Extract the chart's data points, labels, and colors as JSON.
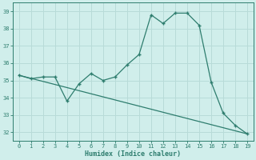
{
  "title": "",
  "xlabel": "Humidex (Indice chaleur)",
  "ylabel": "",
  "line1_x": [
    0,
    1,
    2,
    3,
    4,
    5,
    6,
    7,
    8,
    9,
    10,
    11,
    12,
    13,
    14,
    15,
    16,
    17,
    18,
    19
  ],
  "line1_y": [
    35.3,
    35.1,
    35.2,
    35.2,
    33.8,
    34.8,
    35.4,
    35.0,
    35.2,
    35.9,
    36.5,
    38.8,
    38.3,
    38.9,
    38.9,
    38.2,
    34.9,
    33.1,
    32.4,
    31.9
  ],
  "line2_x": [
    0,
    19
  ],
  "line2_y": [
    35.3,
    31.9
  ],
  "line_color": "#2e7d6e",
  "bg_color": "#d0eeeb",
  "grid_major_color": "#b8dbd8",
  "grid_minor_color": "#c8e8e5",
  "ylim": [
    31.5,
    39.5
  ],
  "xlim": [
    -0.5,
    19.5
  ],
  "yticks": [
    32,
    33,
    34,
    35,
    36,
    37,
    38,
    39
  ],
  "xticks": [
    0,
    1,
    2,
    3,
    4,
    5,
    6,
    7,
    8,
    9,
    10,
    11,
    12,
    13,
    14,
    15,
    16,
    17,
    18,
    19
  ]
}
